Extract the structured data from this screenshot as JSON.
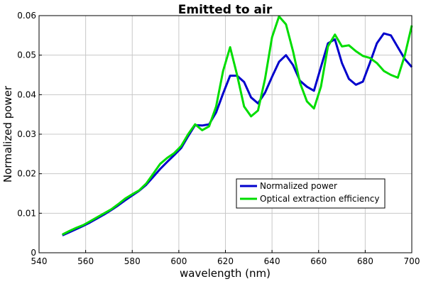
{
  "chart_data": {
    "type": "line",
    "title": "Emitted to air",
    "xlabel": "wavelength (nm)",
    "ylabel": "Normalized power",
    "xlim": [
      540,
      700
    ],
    "ylim": [
      0,
      0.06
    ],
    "xticks": [
      540,
      560,
      580,
      600,
      620,
      640,
      660,
      680,
      700
    ],
    "yticks": [
      0,
      0.01,
      0.02,
      0.03,
      0.04,
      0.05,
      0.06
    ],
    "xtick_labels": [
      "540",
      "560",
      "580",
      "600",
      "620",
      "640",
      "660",
      "680",
      "700"
    ],
    "ytick_labels": [
      "0",
      "0.01",
      "0.02",
      "0.03",
      "0.04",
      "0.05",
      "0.06"
    ],
    "grid": true,
    "legend_position": "lower-right",
    "series": [
      {
        "name": "Normalized power",
        "color": "#0000cc",
        "x": [
          550,
          553,
          556,
          559,
          562,
          565,
          568,
          571,
          574,
          577,
          580,
          583,
          586,
          589,
          592,
          595,
          598,
          601,
          604,
          607,
          610,
          613,
          616,
          619,
          622,
          625,
          628,
          631,
          634,
          637,
          640,
          643,
          646,
          649,
          652,
          655,
          658,
          661,
          664,
          667,
          670,
          673,
          676,
          679,
          682,
          685,
          688,
          691,
          694,
          697,
          700
        ],
        "y": [
          0.0044,
          0.0052,
          0.006,
          0.0068,
          0.0077,
          0.0087,
          0.0097,
          0.0108,
          0.012,
          0.0133,
          0.0145,
          0.0157,
          0.0172,
          0.0192,
          0.0212,
          0.023,
          0.0247,
          0.0265,
          0.0295,
          0.0323,
          0.0322,
          0.0325,
          0.0355,
          0.0403,
          0.0448,
          0.0448,
          0.0432,
          0.0393,
          0.0378,
          0.0405,
          0.0445,
          0.0483,
          0.05,
          0.0475,
          0.0435,
          0.042,
          0.041,
          0.047,
          0.053,
          0.054,
          0.048,
          0.044,
          0.0425,
          0.0433,
          0.048,
          0.053,
          0.0555,
          0.055,
          0.052,
          0.049,
          0.047
        ]
      },
      {
        "name": "Optical extraction efficiency",
        "color": "#00dd00",
        "x": [
          550,
          553,
          556,
          559,
          562,
          565,
          568,
          571,
          574,
          577,
          580,
          583,
          586,
          589,
          592,
          595,
          598,
          601,
          604,
          607,
          610,
          613,
          616,
          619,
          622,
          625,
          628,
          631,
          634,
          637,
          640,
          643,
          646,
          649,
          652,
          655,
          658,
          661,
          664,
          667,
          670,
          673,
          676,
          679,
          682,
          685,
          688,
          691,
          694,
          697,
          700
        ],
        "y": [
          0.0046,
          0.0055,
          0.0063,
          0.007,
          0.008,
          0.009,
          0.01,
          0.011,
          0.0123,
          0.0137,
          0.0148,
          0.0158,
          0.0175,
          0.02,
          0.0225,
          0.024,
          0.0252,
          0.027,
          0.03,
          0.0325,
          0.031,
          0.032,
          0.037,
          0.046,
          0.052,
          0.045,
          0.037,
          0.0345,
          0.036,
          0.044,
          0.0545,
          0.0598,
          0.0578,
          0.051,
          0.043,
          0.0383,
          0.0365,
          0.042,
          0.0522,
          0.0552,
          0.0522,
          0.0525,
          0.051,
          0.0498,
          0.0493,
          0.048,
          0.046,
          0.045,
          0.0443,
          0.05,
          0.0575
        ]
      }
    ]
  }
}
